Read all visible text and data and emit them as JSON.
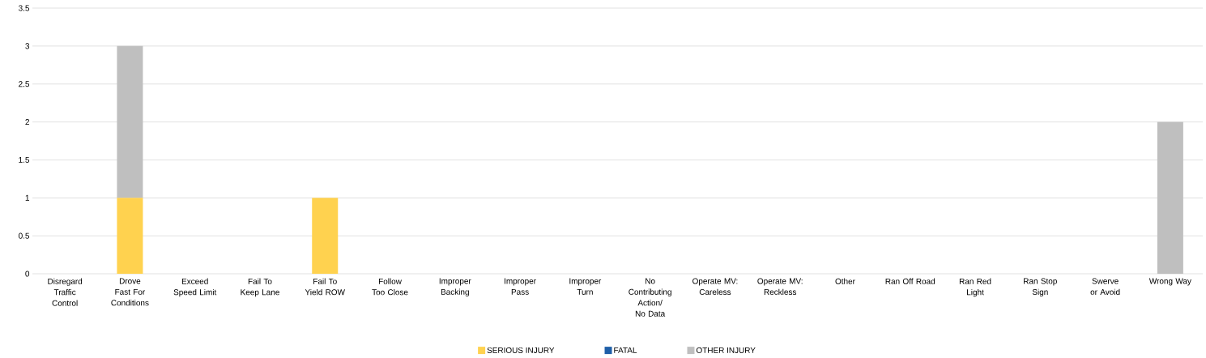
{
  "chart_data": {
    "type": "bar",
    "stacked": true,
    "categories": [
      "Disregard Traffic Control",
      "Drove Fast For Conditions",
      "Exceed Speed Limit",
      "Fail To Keep Lane",
      "Fail To Yield ROW",
      "Follow Too Close",
      "Improper Backing",
      "Improper Pass",
      "Improper Turn",
      "No Contributing Action/ No Data",
      "Operate MV: Careless",
      "Operate MV: Reckless",
      "Other",
      "Ran Off Road",
      "Ran Red Light",
      "Ran Stop Sign",
      "Swerve or Avoid",
      "Wrong Way"
    ],
    "series": [
      {
        "name": "SERIOUS INJURY",
        "color": "#ffd24f",
        "values": [
          0,
          1,
          0,
          0,
          1,
          0,
          0,
          0,
          0,
          0,
          0,
          0,
          0,
          0,
          0,
          0,
          0,
          0
        ]
      },
      {
        "name": "FATAL",
        "color": "#1f5fa8",
        "values": [
          0,
          0,
          0,
          0,
          0,
          0,
          0,
          0,
          0,
          0,
          0,
          0,
          0,
          0,
          0,
          0,
          0,
          0
        ]
      },
      {
        "name": "OTHER INJURY",
        "color": "#bfbfbf",
        "values": [
          0,
          2,
          0,
          0,
          0,
          0,
          0,
          0,
          0,
          0,
          0,
          0,
          0,
          0,
          0,
          0,
          0,
          2
        ]
      }
    ],
    "ylim": [
      0,
      3.5
    ],
    "yticks": [
      0,
      0.5,
      1,
      1.5,
      2,
      2.5,
      3,
      3.5
    ],
    "grid": "y",
    "legend": "bottom"
  }
}
